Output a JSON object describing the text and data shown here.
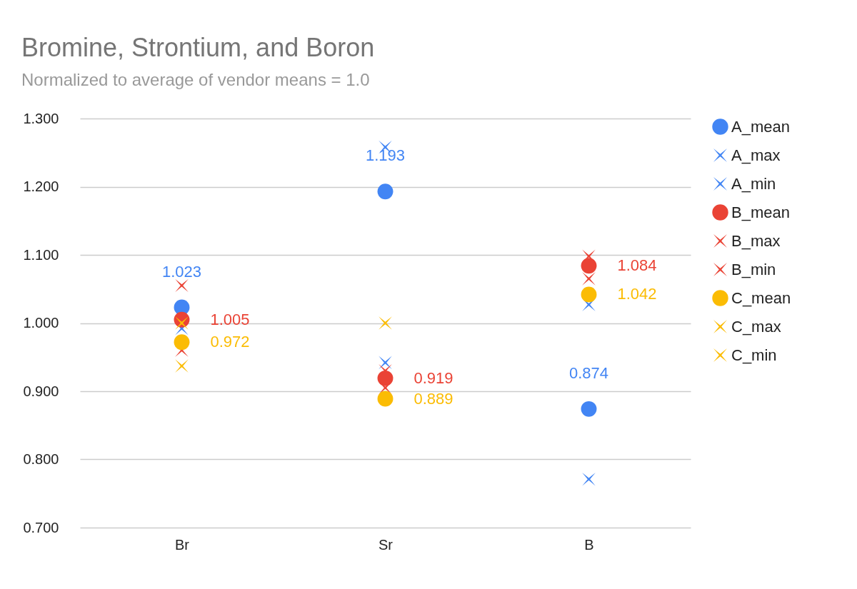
{
  "chart_data": {
    "type": "scatter",
    "title": "Bromine, Strontium, and Boron",
    "subtitle": "Normalized to average of vendor means = 1.0",
    "categories": [
      "Br",
      "Sr",
      "B"
    ],
    "ylim": [
      0.7,
      1.3
    ],
    "yticks": [
      {
        "value": 0.7,
        "label": "0.700"
      },
      {
        "value": 0.8,
        "label": "0.800"
      },
      {
        "value": 0.9,
        "label": "0.900"
      },
      {
        "value": 1.0,
        "label": "1.000"
      },
      {
        "value": 1.1,
        "label": "1.100"
      },
      {
        "value": 1.2,
        "label": "1.200"
      },
      {
        "value": 1.3,
        "label": "1.300"
      }
    ],
    "grid": "y",
    "legend": "right",
    "series": [
      {
        "name": "A_mean",
        "color": "#4285f4",
        "marker": "circle",
        "values": [
          1.023,
          1.193,
          0.874
        ],
        "value_labels": [
          "1.023",
          "1.193",
          "0.874"
        ]
      },
      {
        "name": "A_max",
        "color": "#4285f4",
        "marker": "cross",
        "values": [
          null,
          1.258,
          1.027
        ]
      },
      {
        "name": "A_min",
        "color": "#4285f4",
        "marker": "cross",
        "values": [
          0.992,
          0.942,
          0.771
        ]
      },
      {
        "name": "B_mean",
        "color": "#ea4335",
        "marker": "circle",
        "values": [
          1.005,
          0.919,
          1.084
        ],
        "value_labels": [
          "1.005",
          "0.919",
          "1.084"
        ]
      },
      {
        "name": "B_max",
        "color": "#ea4335",
        "marker": "cross",
        "values": [
          1.055,
          0.93,
          1.098
        ]
      },
      {
        "name": "B_min",
        "color": "#ea4335",
        "marker": "cross",
        "values": [
          0.96,
          0.905,
          1.065
        ]
      },
      {
        "name": "C_mean",
        "color": "#fbbc04",
        "marker": "circle",
        "values": [
          0.972,
          0.889,
          1.042
        ],
        "value_labels": [
          "0.972",
          "0.889",
          "1.042"
        ]
      },
      {
        "name": "C_max",
        "color": "#fbbc04",
        "marker": "cross",
        "values": [
          1.0,
          1.0,
          null
        ]
      },
      {
        "name": "C_min",
        "color": "#fbbc04",
        "marker": "cross",
        "values": [
          0.937,
          null,
          null
        ]
      }
    ]
  }
}
